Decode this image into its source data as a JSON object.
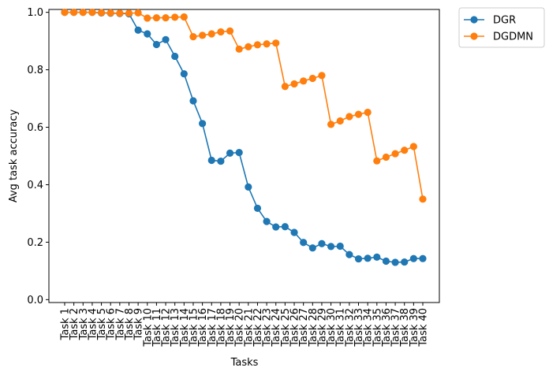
{
  "chart_data": {
    "type": "line",
    "xlabel": "Tasks",
    "ylabel": "Avg task accuracy",
    "ylim": [
      -0.01,
      1.01
    ],
    "yticks": [
      0.0,
      0.2,
      0.4,
      0.6,
      0.8,
      1.0
    ],
    "ytick_labels": [
      "0.0",
      "0.2",
      "0.4",
      "0.6",
      "0.8",
      "1.0"
    ],
    "categories": [
      "Task 1",
      "Task 2",
      "Task 3",
      "Task 4",
      "Task 5",
      "Task 6",
      "Task 7",
      "Task 8",
      "Task 9",
      "Task 10",
      "Task 11",
      "Task 12",
      "Task 13",
      "Task 14",
      "Task 15",
      "Task 16",
      "Task 17",
      "Task 18",
      "Task 19",
      "Task 20",
      "Task 21",
      "Task 22",
      "Task 23",
      "Task 24",
      "Task 25",
      "Task 26",
      "Task 27",
      "Task 28",
      "Task 29",
      "Task 30",
      "Task 31",
      "Task 32",
      "Task 33",
      "Task 34",
      "Task 35",
      "Task 36",
      "Task 37",
      "Task 38",
      "Task 39",
      "Task 40"
    ],
    "legend_position": "outside-top-right",
    "grid": false,
    "series": [
      {
        "name": "DGR",
        "color": "#1f77b4",
        "values": [
          1.0,
          1.0,
          1.0,
          1.0,
          0.998,
          0.997,
          0.996,
          0.995,
          0.938,
          0.925,
          0.888,
          0.905,
          0.847,
          0.786,
          0.692,
          0.613,
          0.485,
          0.482,
          0.51,
          0.512,
          0.392,
          0.318,
          0.272,
          0.253,
          0.254,
          0.234,
          0.199,
          0.18,
          0.195,
          0.185,
          0.186,
          0.157,
          0.142,
          0.144,
          0.148,
          0.134,
          0.13,
          0.131,
          0.143,
          0.143
        ]
      },
      {
        "name": "DGDMN",
        "color": "#ff7f0e",
        "values": [
          1.0,
          1.0,
          1.0,
          1.0,
          0.999,
          0.998,
          0.997,
          0.997,
          0.998,
          0.98,
          0.981,
          0.981,
          0.983,
          0.984,
          0.915,
          0.92,
          0.925,
          0.932,
          0.935,
          0.872,
          0.88,
          0.887,
          0.89,
          0.893,
          0.742,
          0.751,
          0.761,
          0.77,
          0.78,
          0.61,
          0.622,
          0.637,
          0.645,
          0.652,
          0.483,
          0.496,
          0.508,
          0.52,
          0.533,
          0.35
        ]
      }
    ]
  }
}
